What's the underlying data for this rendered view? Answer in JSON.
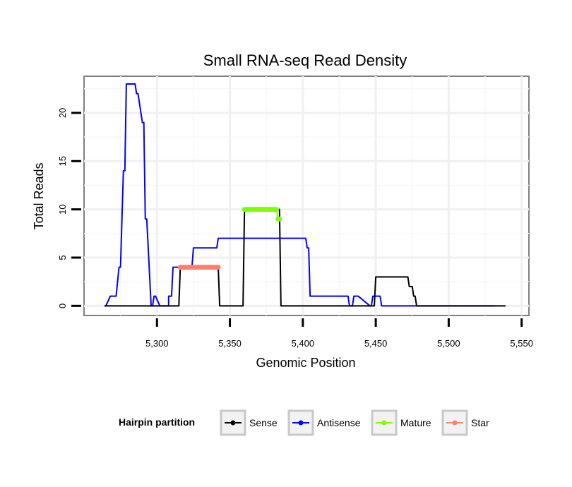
{
  "chart_data": {
    "type": "line",
    "title": "Small RNA-seq Read Density",
    "xlabel": "Genomic Position",
    "ylabel": "Total Reads",
    "xlim": [
      5250,
      5555
    ],
    "ylim": [
      -1,
      23.8
    ],
    "xticks": [
      5300,
      5350,
      5400,
      5450,
      5500,
      5550
    ],
    "xtick_labels": [
      "5,300",
      "5,350",
      "5,400",
      "5,450",
      "5,500",
      "5,550"
    ],
    "yticks": [
      0,
      5,
      10,
      15,
      20
    ],
    "ytick_labels": [
      "0",
      "5",
      "10",
      "15",
      "20"
    ],
    "grid": true,
    "legend": {
      "title": "Hairpin partition",
      "position": "bottom",
      "entries": [
        {
          "name": "Sense",
          "color": "#000000"
        },
        {
          "name": "Antisense",
          "color": "#0000ff"
        },
        {
          "name": "Mature",
          "color": "#7fff00"
        },
        {
          "name": "Star",
          "color": "#fa8072"
        }
      ]
    },
    "series": [
      {
        "name": "Sense",
        "color": "#000000",
        "x": [
          5264,
          5315,
          5316,
          5342,
          5343,
          5359,
          5360,
          5384,
          5385,
          5449,
          5450,
          5472,
          5473,
          5475,
          5476,
          5477,
          5478,
          5539
        ],
        "y": [
          0,
          0,
          4,
          4,
          0,
          0,
          10,
          10,
          0,
          0,
          3,
          3,
          2,
          2,
          1,
          1,
          0,
          0
        ]
      },
      {
        "name": "Antisense",
        "color": "#0000ff",
        "x": [
          5264,
          5265,
          5268,
          5269,
          5271,
          5272,
          5274,
          5275,
          5277,
          5278,
          5279,
          5280,
          5284,
          5285,
          5286,
          5287,
          5290,
          5291,
          5292,
          5293,
          5296,
          5297,
          5298,
          5299,
          5302,
          5303,
          5304,
          5305,
          5307,
          5308,
          5308,
          5310,
          5311,
          5312,
          5314,
          5324,
          5325,
          5326,
          5327,
          5341,
          5342,
          5343,
          5344,
          5402,
          5403,
          5404,
          5405,
          5429,
          5430,
          5431,
          5432,
          5434,
          5435,
          5436,
          5437,
          5438,
          5446,
          5447,
          5448,
          5449,
          5452,
          5453,
          5454,
          5455,
          5461,
          5462,
          5463,
          5464,
          5466,
          5467,
          5468,
          5469,
          5476,
          5477,
          5478,
          5479,
          5484,
          5485,
          5486,
          5487,
          5500,
          5501,
          5502,
          5503,
          5510,
          5511,
          5512,
          5513,
          5528,
          5529,
          5530,
          5531
        ],
        "y": [
          0,
          0,
          1,
          1,
          1,
          1,
          4,
          4,
          14,
          14,
          23,
          23,
          23,
          23,
          22,
          22,
          19,
          19,
          9,
          9,
          0,
          0,
          1,
          1,
          0,
          0,
          0,
          0,
          0,
          0,
          1,
          1,
          4,
          4,
          4,
          4,
          6,
          6,
          6,
          6,
          7,
          7,
          7,
          7,
          6,
          6,
          1,
          1,
          1,
          1,
          0,
          0,
          1,
          1,
          1,
          1,
          0,
          0,
          1,
          1,
          1,
          1,
          0,
          0,
          0,
          0,
          0,
          0,
          0,
          0,
          0,
          0,
          0,
          0,
          0,
          0,
          0,
          0,
          0,
          0,
          0,
          0,
          0,
          0,
          0,
          0,
          0,
          0,
          0,
          0,
          0,
          0
        ]
      },
      {
        "name": "Mature",
        "color": "#7fff00",
        "x": [
          5360,
          5361,
          5362,
          5363,
          5364,
          5365,
          5366,
          5367,
          5368,
          5369,
          5370,
          5371,
          5372,
          5373,
          5374,
          5375,
          5376,
          5377,
          5378,
          5379,
          5380,
          5381,
          5382,
          5383,
          5384
        ],
        "y": [
          10,
          10,
          10,
          10,
          10,
          10,
          10,
          10,
          10,
          10,
          10,
          10,
          10,
          10,
          10,
          10,
          10,
          10,
          10,
          10,
          10,
          10,
          10,
          9,
          9
        ]
      },
      {
        "name": "Star",
        "color": "#fa8072",
        "x": [
          5316,
          5317,
          5318,
          5319,
          5320,
          5321,
          5322,
          5323,
          5324,
          5325,
          5326,
          5327,
          5328,
          5329,
          5330,
          5331,
          5332,
          5333,
          5334,
          5335,
          5336,
          5337,
          5338,
          5339,
          5340,
          5341,
          5342
        ],
        "y": [
          4,
          4,
          4,
          4,
          4,
          4,
          4,
          4,
          4,
          4,
          4,
          4,
          4,
          4,
          4,
          4,
          4,
          4,
          4,
          4,
          4,
          4,
          4,
          4,
          4,
          4,
          4
        ]
      }
    ]
  }
}
